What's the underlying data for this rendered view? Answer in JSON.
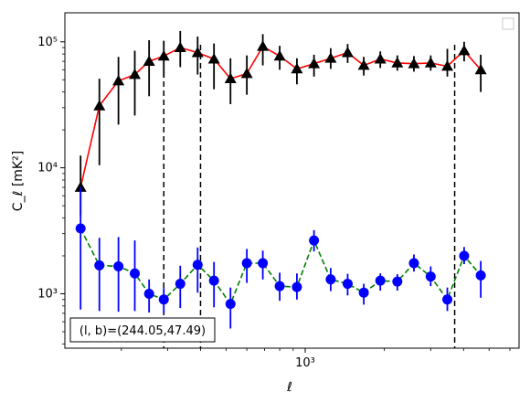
{
  "chart_data": {
    "type": "scatter",
    "title": "",
    "xlabel": "ℓ",
    "ylabel": "C_ℓ  [mK²]",
    "xscale": "log",
    "yscale": "log",
    "xlim": [
      122,
      6500
    ],
    "ylim": [
      370,
      170000
    ],
    "x_ticks": [
      {
        "value": 1000,
        "label": "10³"
      }
    ],
    "y_ticks": [
      {
        "value": 1000,
        "label": "10³"
      },
      {
        "value": 10000,
        "label": "10⁴"
      },
      {
        "value": 100000,
        "label": "10⁵"
      }
    ],
    "grid": false,
    "legend": {
      "placement": "upper-right",
      "entries": []
    },
    "annotation": "(l, b)=(244.05,47.49)",
    "vlines": [
      290,
      400,
      3700
    ],
    "x": [
      140,
      165,
      195,
      225,
      255,
      290,
      335,
      390,
      450,
      520,
      600,
      690,
      800,
      930,
      1080,
      1250,
      1450,
      1670,
      1930,
      2240,
      2590,
      3000,
      3470,
      4020,
      4650
    ],
    "series": [
      {
        "name": "",
        "color": "#ff0000",
        "marker": "triangle",
        "marker_color": "#000000",
        "linestyle": "solid",
        "errorbar_color": "#000000",
        "values": [
          7000,
          31000,
          49000,
          55000,
          70000,
          77000,
          90000,
          82000,
          73000,
          51000,
          56000,
          92000,
          77000,
          61000,
          67000,
          74000,
          82000,
          65000,
          73000,
          68000,
          67000,
          68000,
          64000,
          85000,
          60000
        ],
        "err_low": [
          2800,
          20500,
          27000,
          29000,
          33000,
          25000,
          27000,
          27000,
          31000,
          19000,
          18000,
          27000,
          17000,
          15000,
          14000,
          13000,
          14000,
          11000,
          11000,
          9000,
          9000,
          9000,
          11000,
          15000,
          20000
        ],
        "err_high": [
          5500,
          20000,
          27000,
          30000,
          33000,
          25000,
          32000,
          28000,
          24000,
          23000,
          22000,
          23000,
          16000,
          13000,
          12000,
          15000,
          14000,
          11000,
          11000,
          10000,
          10000,
          10000,
          24000,
          15000,
          19000
        ]
      },
      {
        "name": "",
        "color": "#008000",
        "marker": "circle",
        "marker_color": "#0000ff",
        "linestyle": "dashed",
        "errorbar_color": "#0000ff",
        "values": [
          3300,
          1680,
          1650,
          1450,
          1000,
          900,
          1200,
          1700,
          1270,
          830,
          1750,
          1750,
          1150,
          1130,
          2650,
          1300,
          1200,
          1020,
          1270,
          1250,
          1750,
          1370,
          900,
          2000,
          1400
        ],
        "err_low": [
          2550,
          950,
          930,
          720,
          290,
          200,
          430,
          680,
          490,
          300,
          530,
          450,
          270,
          230,
          480,
          250,
          230,
          200,
          210,
          190,
          250,
          220,
          170,
          280,
          470
        ],
        "err_high": [
          3700,
          1100,
          1170,
          1200,
          300,
          210,
          470,
          630,
          520,
          290,
          520,
          450,
          320,
          320,
          550,
          300,
          240,
          180,
          180,
          180,
          300,
          280,
          220,
          350,
          420
        ]
      }
    ]
  }
}
